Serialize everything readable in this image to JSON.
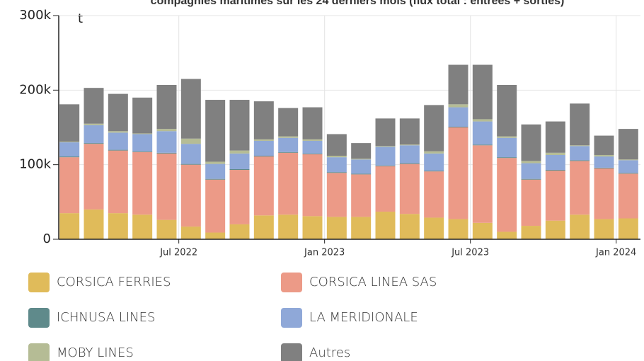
{
  "chart_data": {
    "type": "stacked_bar",
    "title": "compagnies maritimes sur les 24 derniers mois (flux total : entrées + sorties)",
    "y_unit": "t",
    "x": [
      "2022-02",
      "2022-03",
      "2022-04",
      "2022-05",
      "2022-06",
      "2022-07",
      "2022-08",
      "2022-09",
      "2022-10",
      "2022-11",
      "2022-12",
      "2023-01",
      "2023-02",
      "2023-03",
      "2023-04",
      "2023-05",
      "2023-06",
      "2023-07",
      "2023-08",
      "2023-09",
      "2023-10",
      "2023-11",
      "2023-12",
      "2024-01"
    ],
    "xlim": [
      "2022-02",
      "2024-02"
    ],
    "xticks": [
      {
        "value": "2022-07",
        "label": "Jul 2022"
      },
      {
        "value": "2023-01",
        "label": "Jan 2023"
      },
      {
        "value": "2023-07",
        "label": "Jul 2023"
      },
      {
        "value": "2024-01",
        "label": "Jan 2024"
      }
    ],
    "ylim": [
      0,
      300000
    ],
    "yticks": [
      0,
      {
        "value": 100000,
        "label": "100k"
      },
      {
        "value": 200000,
        "label": "200k"
      },
      {
        "value": 300000,
        "label": "300k"
      }
    ],
    "grid": true,
    "series": [
      {
        "name": "CORSICA FERRIES",
        "color": "#e0bb5a",
        "values": [
          35000,
          40000,
          35000,
          33000,
          26000,
          17000,
          9000,
          20000,
          32000,
          33000,
          31000,
          30000,
          30000,
          37000,
          34000,
          29000,
          27000,
          22000,
          10000,
          18000,
          25000,
          33000,
          27000,
          28000
        ]
      },
      {
        "name": "CORSICA LINEA SAS",
        "color": "#ec9a87",
        "values": [
          75000,
          88000,
          84000,
          84000,
          89000,
          83000,
          71000,
          73000,
          79000,
          83000,
          83000,
          59000,
          57000,
          61000,
          67000,
          62000,
          123000,
          104000,
          99000,
          62000,
          67000,
          72000,
          68000,
          60000
        ]
      },
      {
        "name": "ICHNUSA LINES",
        "color": "#5f8a8b",
        "values": [
          1000,
          1000,
          1000,
          1000,
          1000,
          1000,
          1000,
          1000,
          1000,
          1000,
          1000,
          1000,
          1000,
          1000,
          1000,
          1000,
          1000,
          1000,
          1000,
          1000,
          1000,
          1000,
          1000,
          1000
        ]
      },
      {
        "name": "LA MERIDIONALE",
        "color": "#8fa8d8",
        "values": [
          19000,
          24000,
          23000,
          23000,
          29000,
          27000,
          20000,
          21000,
          20000,
          19000,
          17000,
          20000,
          19000,
          25000,
          24000,
          23000,
          26000,
          31000,
          26000,
          21000,
          20000,
          19000,
          15000,
          17000
        ]
      },
      {
        "name": "MOBY LINES",
        "color": "#b5bc95",
        "values": [
          1000,
          2000,
          2000,
          1000,
          3000,
          7000,
          3000,
          4000,
          2000,
          2000,
          2000,
          2000,
          1000,
          1000,
          1000,
          3000,
          4000,
          3000,
          2000,
          3000,
          3000,
          1000,
          2000,
          1000
        ]
      },
      {
        "name": "Autres",
        "color": "#808080",
        "values": [
          50000,
          48000,
          50000,
          48000,
          59000,
          80000,
          83000,
          68000,
          51000,
          38000,
          43000,
          29000,
          21000,
          37000,
          35000,
          62000,
          53000,
          73000,
          69000,
          49000,
          42000,
          56000,
          26000,
          41000
        ]
      }
    ]
  }
}
